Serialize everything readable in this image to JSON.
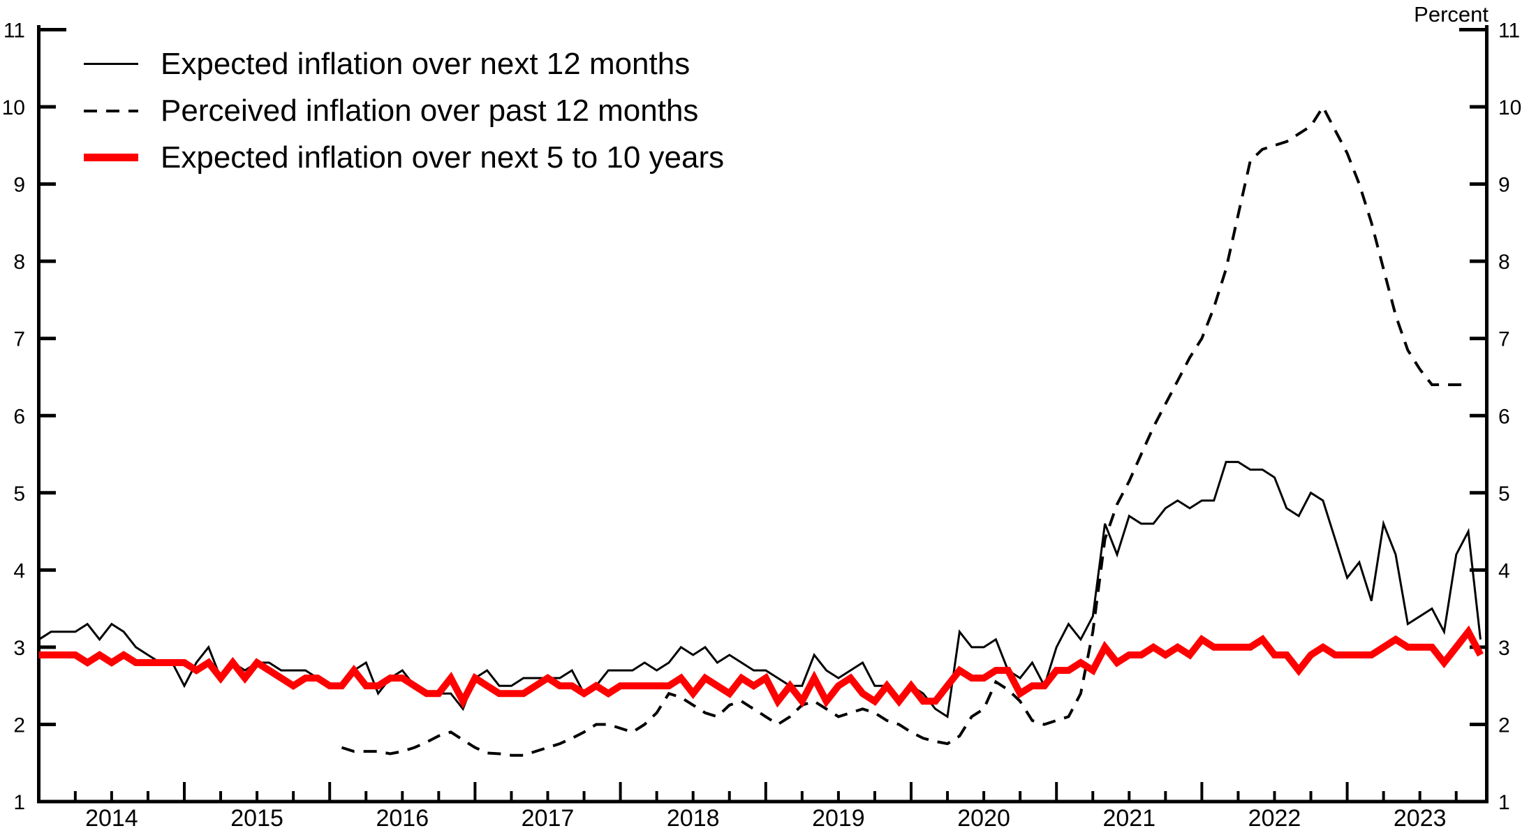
{
  "legend": {
    "items": [
      {
        "label": "Expected inflation over next 12 months",
        "swatch": "thin-solid-black-line"
      },
      {
        "label": "Perceived inflation over past 12 months",
        "swatch": "dashed-black-line"
      },
      {
        "label": "Expected inflation over next 5 to 10 years",
        "swatch": "thick-solid-red-line"
      }
    ]
  },
  "axes": {
    "y_unit": "Percent",
    "y_min": 1,
    "y_max": 11,
    "y_ticks": [
      1,
      2,
      3,
      4,
      5,
      6,
      7,
      8,
      9,
      10,
      11
    ],
    "x_years": [
      2014,
      2015,
      2016,
      2017,
      2018,
      2019,
      2020,
      2021,
      2022,
      2023
    ],
    "x_minor_tick_interval_years": 0.25
  },
  "colors": {
    "black": "#000000",
    "red": "#ff0000",
    "background": "#ffffff"
  },
  "chart_data": {
    "type": "line",
    "title": "",
    "xlabel": "",
    "ylabel": "Percent",
    "ylim": [
      1,
      11
    ],
    "xlim": [
      2014.0,
      2023.97
    ],
    "grid": false,
    "legend_position": "top-left",
    "frequency": "monthly",
    "series": [
      {
        "id": "expected-12m",
        "name": "Expected inflation over next 12 months",
        "color": "#000000",
        "style": "solid",
        "width": 3,
        "start_year": 2014,
        "start_month": 1,
        "values": [
          3.1,
          3.2,
          3.2,
          3.2,
          3.3,
          3.1,
          3.3,
          3.2,
          3.0,
          2.9,
          2.8,
          2.8,
          2.5,
          2.8,
          3.0,
          2.6,
          2.8,
          2.7,
          2.8,
          2.8,
          2.7,
          2.7,
          2.7,
          2.6,
          2.5,
          2.5,
          2.7,
          2.8,
          2.4,
          2.6,
          2.7,
          2.5,
          2.4,
          2.4,
          2.4,
          2.2,
          2.6,
          2.7,
          2.5,
          2.5,
          2.6,
          2.6,
          2.6,
          2.6,
          2.7,
          2.4,
          2.5,
          2.7,
          2.7,
          2.7,
          2.8,
          2.7,
          2.8,
          3.0,
          2.9,
          3.0,
          2.8,
          2.9,
          2.8,
          2.7,
          2.7,
          2.6,
          2.5,
          2.5,
          2.9,
          2.7,
          2.6,
          2.7,
          2.8,
          2.5,
          2.5,
          2.3,
          2.5,
          2.4,
          2.2,
          2.1,
          3.2,
          3.0,
          3.0,
          3.1,
          2.7,
          2.6,
          2.8,
          2.5,
          3.0,
          3.3,
          3.1,
          3.4,
          4.6,
          4.2,
          4.7,
          4.6,
          4.6,
          4.8,
          4.9,
          4.8,
          4.9,
          4.9,
          5.4,
          5.4,
          5.3,
          5.3,
          5.2,
          4.8,
          4.7,
          5.0,
          4.9,
          4.4,
          3.9,
          4.1,
          3.6,
          4.6,
          4.2,
          3.3,
          3.4,
          3.5,
          3.2,
          4.2,
          4.5,
          3.1
        ]
      },
      {
        "id": "perceived-12m",
        "name": "Perceived inflation over past 12 months",
        "color": "#000000",
        "style": "dashed",
        "width": 4,
        "start_year": 2016,
        "start_month": 2,
        "values": [
          1.7,
          1.65,
          1.65,
          1.65,
          1.62,
          1.65,
          1.7,
          1.77,
          1.85,
          1.9,
          1.8,
          1.7,
          1.63,
          1.62,
          1.6,
          1.6,
          1.65,
          1.7,
          1.75,
          1.82,
          1.9,
          2.0,
          2.0,
          1.95,
          1.9,
          2.0,
          2.15,
          2.4,
          2.35,
          2.25,
          2.15,
          2.1,
          2.25,
          2.3,
          2.2,
          2.1,
          2.0,
          2.1,
          2.25,
          2.3,
          2.2,
          2.1,
          2.15,
          2.2,
          2.15,
          2.05,
          2.0,
          1.9,
          1.82,
          1.78,
          1.75,
          1.85,
          2.1,
          2.2,
          2.55,
          2.45,
          2.3,
          2.05,
          2.0,
          2.05,
          2.1,
          2.4,
          3.2,
          4.4,
          4.85,
          5.15,
          5.5,
          5.85,
          6.15,
          6.45,
          6.75,
          7.0,
          7.4,
          7.9,
          8.6,
          9.3,
          9.45,
          9.5,
          9.55,
          9.65,
          9.75,
          10.0,
          9.7,
          9.4,
          9.0,
          8.5,
          7.9,
          7.3,
          6.85,
          6.6,
          6.4,
          6.4,
          6.4,
          6.4
        ]
      },
      {
        "id": "expected-5-10y",
        "name": "Expected inflation over next 5 to 10 years",
        "color": "#ff0000",
        "style": "solid",
        "width": 10,
        "start_year": 2014,
        "start_month": 1,
        "values": [
          2.9,
          2.9,
          2.9,
          2.9,
          2.8,
          2.9,
          2.8,
          2.9,
          2.8,
          2.8,
          2.8,
          2.8,
          2.8,
          2.7,
          2.8,
          2.6,
          2.8,
          2.6,
          2.8,
          2.7,
          2.6,
          2.5,
          2.6,
          2.6,
          2.5,
          2.5,
          2.7,
          2.5,
          2.5,
          2.6,
          2.6,
          2.5,
          2.4,
          2.4,
          2.6,
          2.3,
          2.6,
          2.5,
          2.4,
          2.4,
          2.4,
          2.5,
          2.6,
          2.5,
          2.5,
          2.4,
          2.5,
          2.4,
          2.5,
          2.5,
          2.5,
          2.5,
          2.5,
          2.6,
          2.4,
          2.6,
          2.5,
          2.4,
          2.6,
          2.5,
          2.6,
          2.3,
          2.5,
          2.3,
          2.6,
          2.3,
          2.5,
          2.6,
          2.4,
          2.3,
          2.5,
          2.3,
          2.5,
          2.3,
          2.3,
          2.5,
          2.7,
          2.6,
          2.6,
          2.7,
          2.7,
          2.4,
          2.5,
          2.5,
          2.7,
          2.7,
          2.8,
          2.7,
          3.0,
          2.8,
          2.9,
          2.9,
          3.0,
          2.9,
          3.0,
          2.9,
          3.1,
          3.0,
          3.0,
          3.0,
          3.0,
          3.1,
          2.9,
          2.9,
          2.7,
          2.9,
          3.0,
          2.9,
          2.9,
          2.9,
          2.9,
          3.0,
          3.1,
          3.0,
          3.0,
          3.0,
          2.8,
          3.0,
          3.2,
          2.9
        ]
      }
    ]
  }
}
